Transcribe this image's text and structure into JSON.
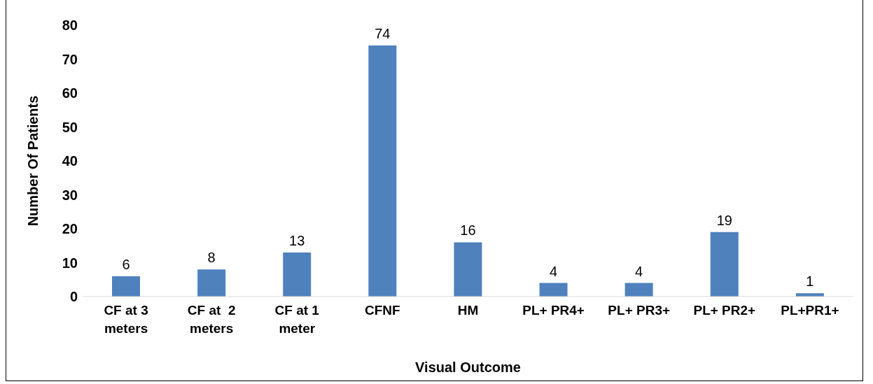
{
  "chart_data": {
    "type": "bar",
    "xlabel": "Visual Outcome",
    "ylabel": "Number Of Patients",
    "categories": [
      "CF at 3 meters",
      "CF at  2 meters",
      "CF at 1 meter",
      "CFNF",
      "HM",
      "PL+ PR4+",
      "PL+ PR3+",
      "PL+ PR2+",
      "PL+PR1+"
    ],
    "values": [
      6,
      8,
      13,
      74,
      16,
      4,
      4,
      19,
      1
    ],
    "color": "#4f81bd",
    "ylim": [
      0,
      80
    ],
    "yticks": [
      0,
      10,
      20,
      30,
      40,
      50,
      60,
      70,
      80
    ],
    "grid": false,
    "data_labels": true
  }
}
